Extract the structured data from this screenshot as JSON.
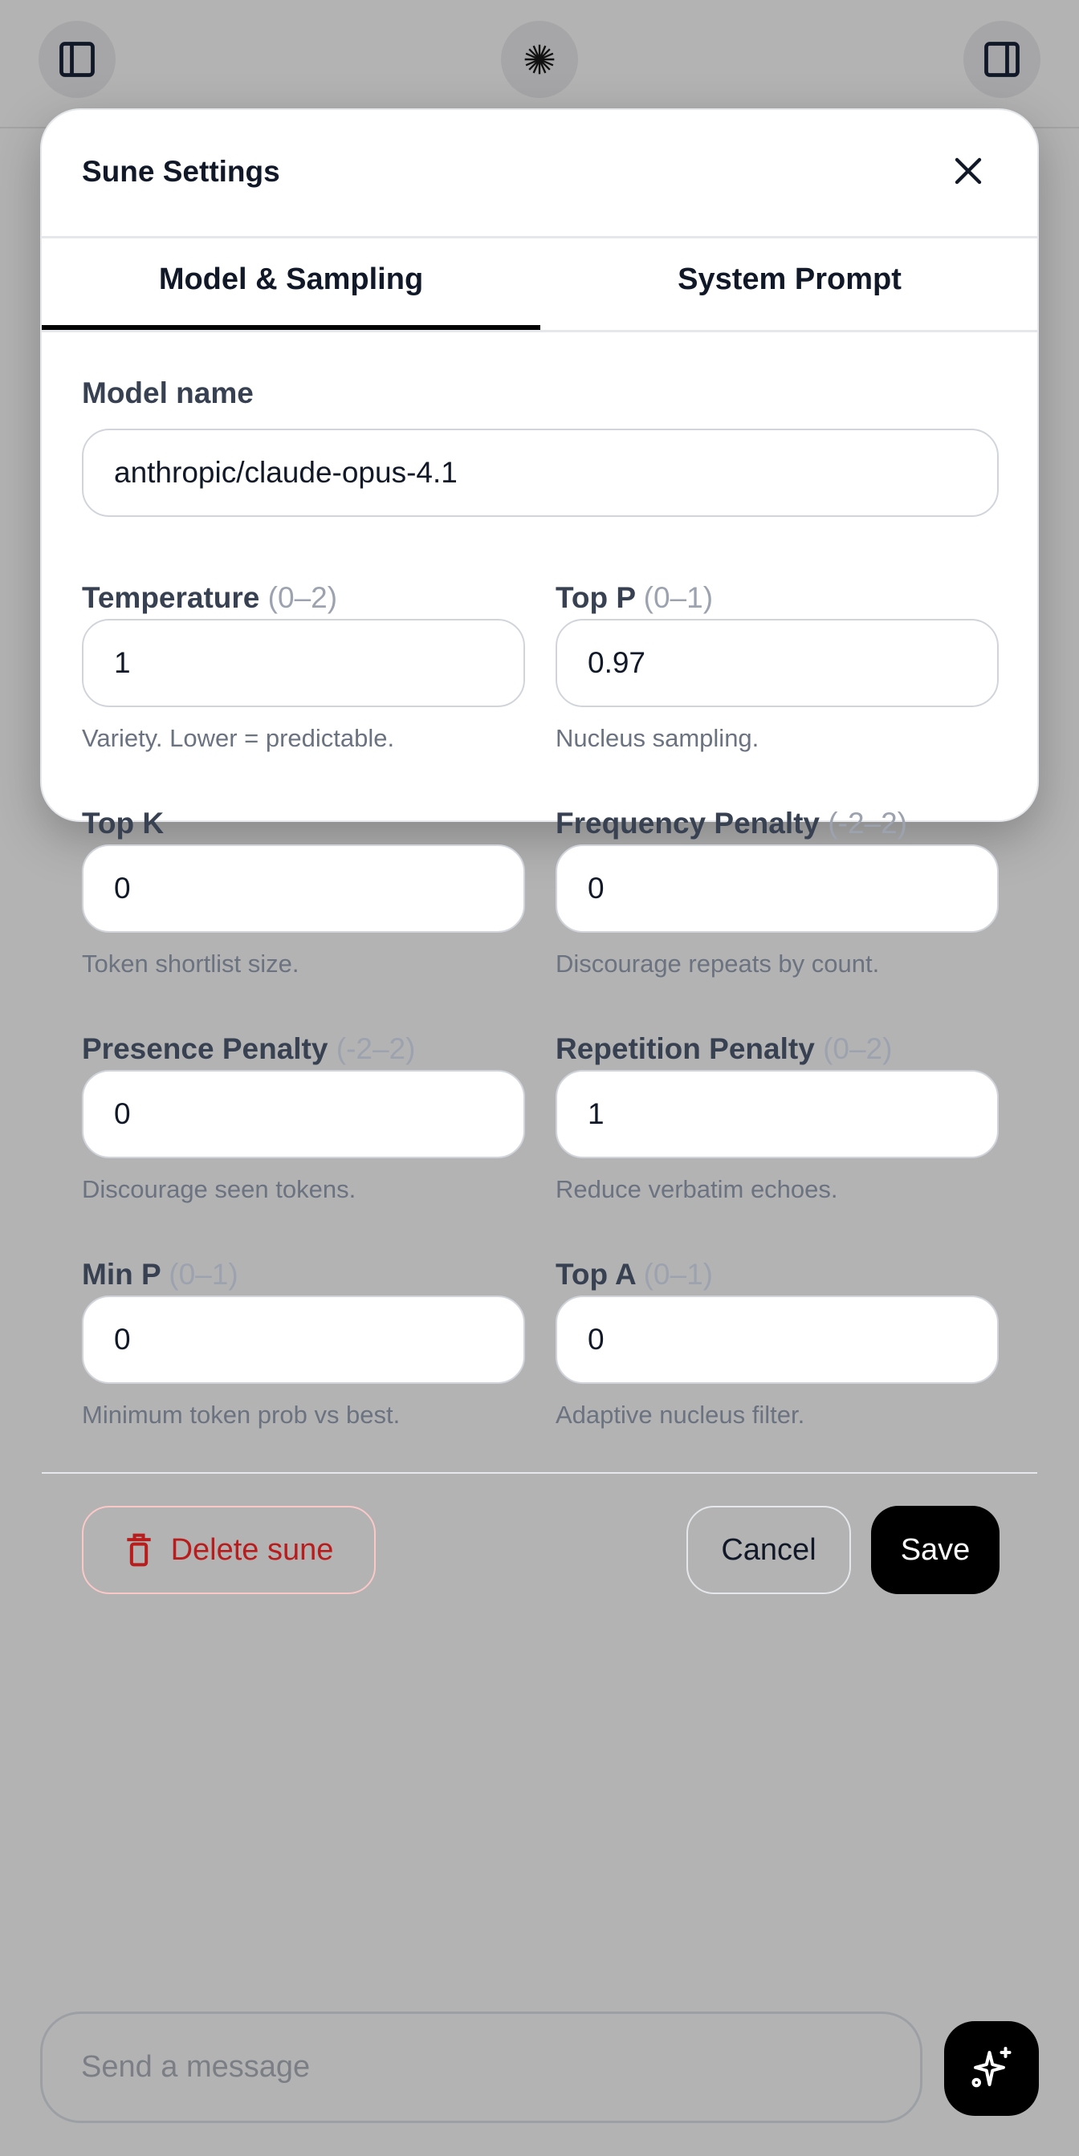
{
  "header": {
    "left_icon": "sidebar-left-icon",
    "center_icon": "sune-burst-icon",
    "right_icon": "sidebar-right-icon"
  },
  "modal": {
    "title": "Sune Settings",
    "tabs": [
      {
        "label": "Model & Sampling",
        "active": true
      },
      {
        "label": "System Prompt",
        "active": false
      }
    ],
    "model": {
      "label": "Model name",
      "value": "anthropic/claude-opus-4.1"
    },
    "fields": [
      {
        "label": "Temperature",
        "range": "(0–2)",
        "value": "1",
        "help": "Variety. Lower = predictable."
      },
      {
        "label": "Top P",
        "range": "(0–1)",
        "value": "0.97",
        "help": "Nucleus sampling."
      },
      {
        "label": "Top K",
        "range": "",
        "value": "0",
        "help": "Token shortlist size."
      },
      {
        "label": "Frequency Penalty",
        "range": "(-2–2)",
        "value": "0",
        "help": "Discourage repeats by count."
      },
      {
        "label": "Presence Penalty",
        "range": "(-2–2)",
        "value": "0",
        "help": "Discourage seen tokens."
      },
      {
        "label": "Repetition Penalty",
        "range": "(0–2)",
        "value": "1",
        "help": "Reduce verbatim echoes."
      },
      {
        "label": "Min P",
        "range": "(0–1)",
        "value": "0",
        "help": "Minimum token prob vs best."
      },
      {
        "label": "Top A",
        "range": "(0–1)",
        "value": "0",
        "help": "Adaptive nucleus filter."
      }
    ],
    "footer": {
      "delete_label": "Delete sune",
      "cancel_label": "Cancel",
      "save_label": "Save"
    }
  },
  "composer": {
    "placeholder": "Send a message",
    "send_icon": "sparkles-icon"
  },
  "colors": {
    "danger": "#b91c1c",
    "primary": "#000000",
    "overlay": "#b3b3b3"
  }
}
